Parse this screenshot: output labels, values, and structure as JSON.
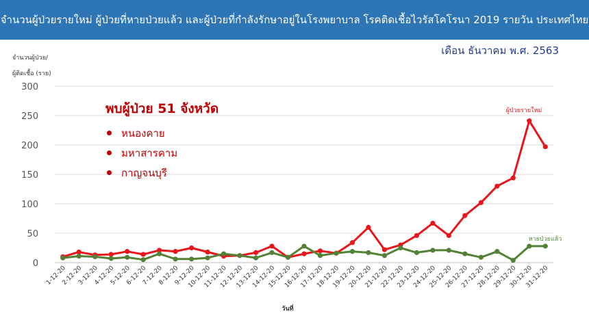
{
  "title": "จำนวนผู้ป่วยรายใหม่ ผู้ป่วยที่หายป่วยแล้ว และผู้ป่วยที่กำลังรักษาอยู่ในโรงพยาบาล โรคติดเชื้อไวรัสโคโรนา 2019 รายวัน ประเทศไทย",
  "month_label": "เดือน ธันวาคม พ.ศ. 2563",
  "note": {
    "heading": "พบผู้ป่วย 51 จังหวัด",
    "provinces": [
      "หนองคาย",
      "มหาสารคาม",
      "กาญจนบุรี"
    ]
  },
  "chart_data": {
    "type": "line",
    "ylabel": [
      "จำนวนผู้ป่วย/",
      "ผู้ติดเชื้อ (ราย)"
    ],
    "xlabel": "วันที่",
    "ylim": [
      0,
      300
    ],
    "yticks": [
      0,
      50,
      100,
      150,
      200,
      250,
      300
    ],
    "grid": true,
    "x": [
      "1-12-20",
      "2-12-20",
      "3-12-20",
      "4-12-20",
      "5-12-20",
      "6-12-20",
      "7-12-20",
      "8-12-20",
      "9-12-20",
      "10-12-20",
      "11-12-20",
      "12-12-20",
      "13-12-20",
      "14-12-20",
      "15-12-20",
      "16-12-20",
      "17-12-20",
      "18-12-20",
      "19-12-20",
      "20-12-20",
      "21-12-20",
      "22-12-20",
      "23-12-20",
      "24-12-20",
      "25-12-20",
      "26-12-20",
      "27-12-20",
      "28-12-20",
      "29-12-20",
      "30-12-20",
      "31-12-20"
    ],
    "series": [
      {
        "name": "ผู้ป่วยรายใหม่",
        "color": "#e8151b",
        "values": [
          10,
          18,
          13,
          14,
          19,
          14,
          21,
          19,
          25,
          18,
          11,
          12,
          17,
          28,
          9,
          15,
          20,
          16,
          34,
          60,
          22,
          30,
          46,
          67,
          46,
          80,
          102,
          130,
          144,
          241,
          197
        ]
      },
      {
        "name": "หายป่วยแล้ว",
        "color": "#538135",
        "values": [
          8,
          11,
          10,
          7,
          9,
          5,
          15,
          6,
          6,
          8,
          15,
          12,
          8,
          17,
          9,
          28,
          12,
          16,
          19,
          17,
          12,
          25,
          17,
          21,
          21,
          15,
          9,
          19,
          4,
          28,
          28
        ]
      }
    ]
  }
}
